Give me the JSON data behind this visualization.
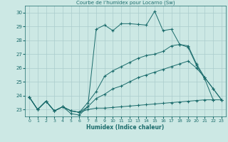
{
  "title": "Courbe de l’humidex pour Locarno (Sw)",
  "xlabel": "Humidex (Indice chaleur)",
  "background_color": "#cce8e4",
  "grid_color": "#aacccc",
  "line_color": "#1a6b6b",
  "xlim": [
    -0.5,
    23.5
  ],
  "ylim": [
    22.5,
    30.5
  ],
  "yticks": [
    23,
    24,
    25,
    26,
    27,
    28,
    29,
    30
  ],
  "xticks": [
    0,
    1,
    2,
    3,
    4,
    5,
    6,
    7,
    8,
    9,
    10,
    11,
    12,
    13,
    14,
    15,
    16,
    17,
    18,
    19,
    20,
    21,
    22,
    23
  ],
  "x": [
    0,
    1,
    2,
    3,
    4,
    5,
    6,
    7,
    8,
    9,
    10,
    11,
    12,
    13,
    14,
    15,
    16,
    17,
    18,
    19,
    20,
    21,
    22,
    23
  ],
  "line1_min": [
    23.9,
    23.0,
    23.6,
    22.9,
    23.2,
    22.9,
    22.8,
    23.0,
    23.1,
    23.1,
    23.15,
    23.2,
    23.25,
    23.3,
    23.35,
    23.4,
    23.45,
    23.5,
    23.55,
    23.6,
    23.65,
    23.7,
    23.7,
    23.7
  ],
  "line2_low": [
    23.9,
    23.0,
    23.6,
    22.9,
    23.2,
    22.9,
    22.8,
    23.2,
    23.8,
    24.1,
    24.5,
    24.7,
    25.0,
    25.3,
    25.5,
    25.7,
    25.9,
    26.1,
    26.3,
    26.5,
    26.0,
    25.3,
    24.5,
    23.7
  ],
  "line3_high": [
    23.9,
    23.0,
    23.6,
    22.9,
    23.2,
    22.9,
    22.8,
    23.5,
    24.3,
    25.4,
    25.8,
    26.1,
    26.4,
    26.7,
    26.9,
    27.0,
    27.2,
    27.6,
    27.7,
    27.6,
    26.3,
    25.3,
    24.5,
    23.7
  ],
  "line4_max": [
    23.9,
    23.0,
    23.6,
    22.9,
    23.2,
    22.7,
    22.6,
    23.2,
    28.8,
    29.1,
    28.7,
    29.2,
    29.2,
    29.15,
    29.1,
    30.1,
    28.7,
    28.8,
    27.7,
    27.5,
    26.2,
    25.2,
    23.7,
    null
  ]
}
